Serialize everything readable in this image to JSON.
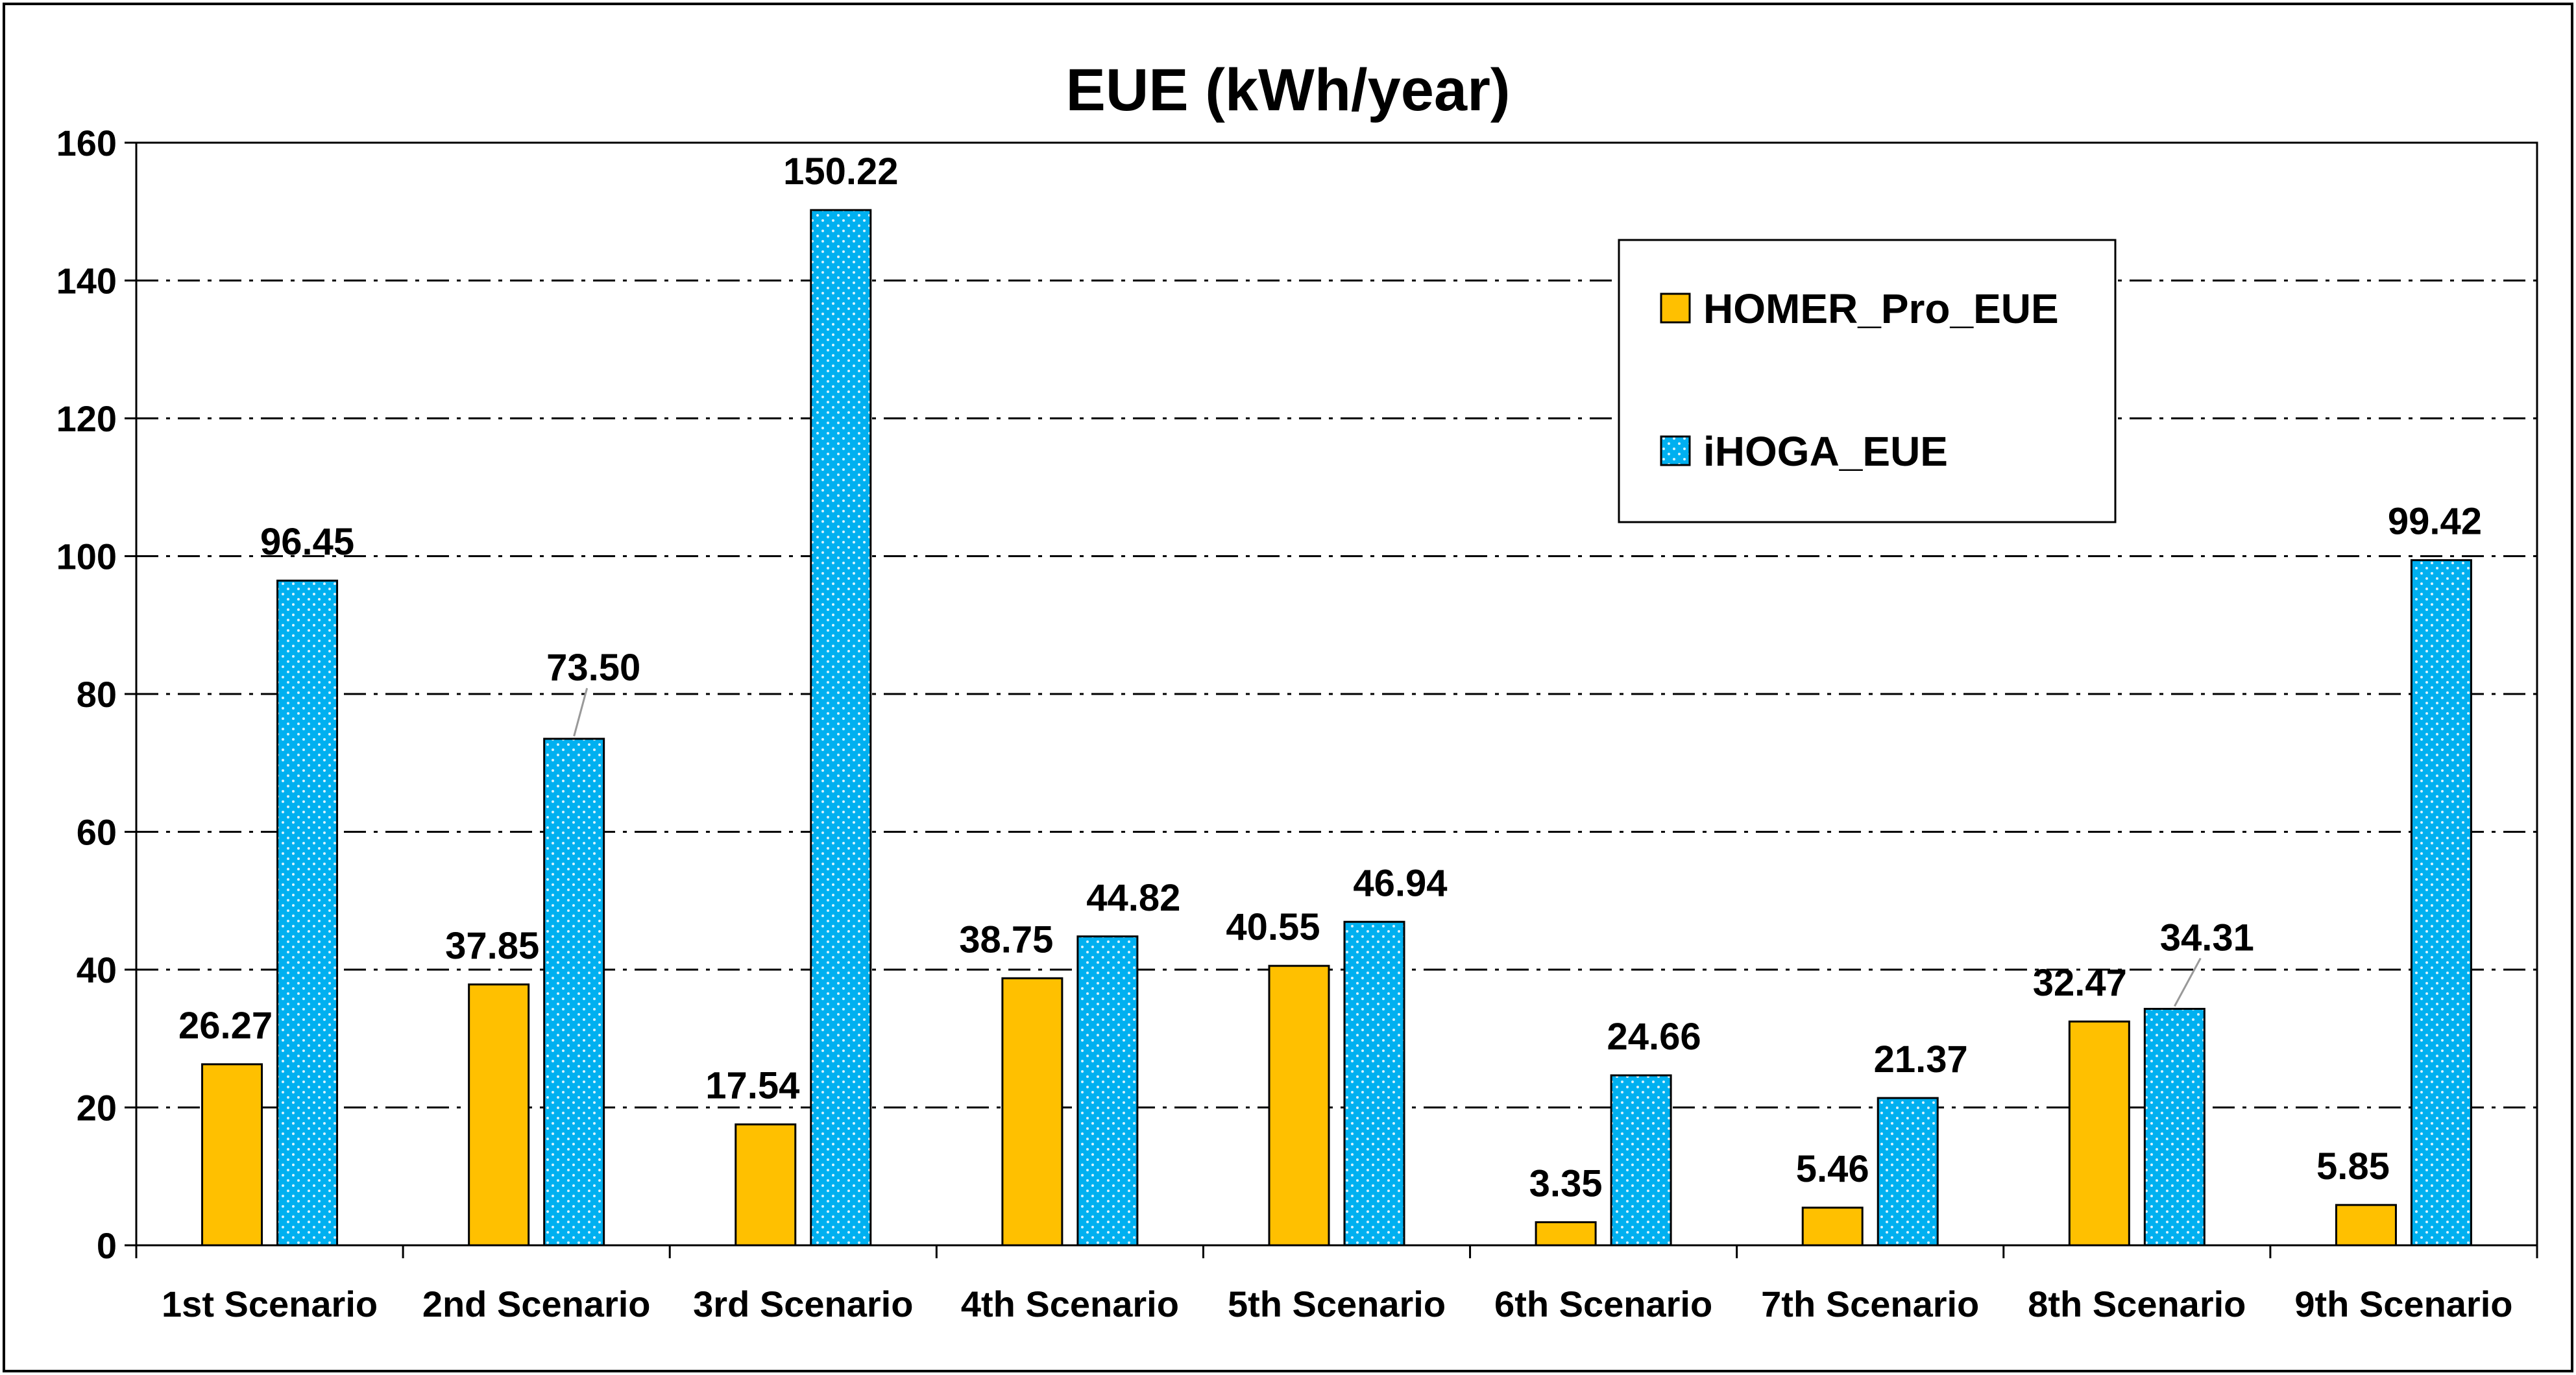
{
  "chart_data": {
    "type": "bar",
    "title": "EUE (kWh/year)",
    "xlabel": "",
    "ylabel": "",
    "ylim": [
      0,
      160
    ],
    "yticks": [
      0,
      20,
      40,
      60,
      80,
      100,
      120,
      140,
      160
    ],
    "grid": true,
    "legend_position": "top-right",
    "categories": [
      "1st Scenario",
      "2nd Scenario",
      "3rd Scenario",
      "4th Scenario",
      "5th Scenario",
      "6th Scenario",
      "7th Scenario",
      "8th Scenario",
      "9th Scenario"
    ],
    "series": [
      {
        "name": "HOMER_Pro_EUE",
        "color": "#FFC000",
        "values": [
          26.27,
          37.85,
          17.54,
          38.75,
          40.55,
          3.35,
          5.46,
          32.47,
          5.85
        ],
        "labels": [
          "26.27",
          "37.85",
          "17.54",
          "38.75",
          "40.55",
          "3.35",
          "5.46",
          "32.47",
          "5.85"
        ]
      },
      {
        "name": "iHOGA_EUE",
        "color": "#00B0F0",
        "values": [
          96.45,
          73.5,
          150.22,
          44.82,
          46.94,
          24.66,
          21.37,
          34.31,
          99.42
        ],
        "labels": [
          "96.45",
          "73.50",
          "150.22",
          "44.82",
          "46.94",
          "24.66",
          "21.37",
          "34.31",
          "99.42"
        ]
      }
    ]
  }
}
